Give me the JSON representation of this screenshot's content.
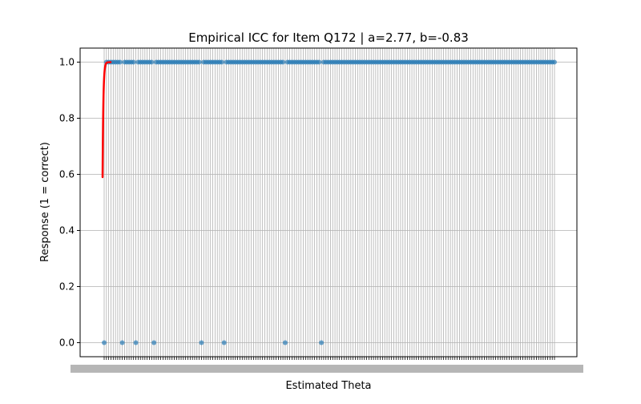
{
  "chart_data": {
    "type": "scatter",
    "title": "Empirical ICC for Item Q172 | a=2.77, b=-0.83",
    "xlabel": "Estimated Theta",
    "ylabel": "Response (1 = correct)",
    "ylim": [
      -0.05,
      1.05
    ],
    "yticks": [
      0.0,
      0.2,
      0.4,
      0.6,
      0.8,
      1.0
    ],
    "ytick_labels": [
      "0.0",
      "0.2",
      "0.4",
      "0.6",
      "0.8",
      "1.0"
    ],
    "grid": true,
    "x_axis_kind": "categorical",
    "x_tick_labels_note": "tick labels overlap and are illegible",
    "n_points": 200,
    "zero_response_indices": [
      0,
      8,
      14,
      22,
      43,
      53,
      80,
      96
    ],
    "series": [
      {
        "kind": "scatter",
        "marker_color": "#1f77b4",
        "description": "observed responses (0 or 1) per examinee"
      },
      {
        "kind": "line",
        "color": "#ff0000",
        "model": "2PL",
        "a": 2.77,
        "b": -0.83,
        "y_start": 0.59,
        "y_end": 1.0
      }
    ]
  }
}
